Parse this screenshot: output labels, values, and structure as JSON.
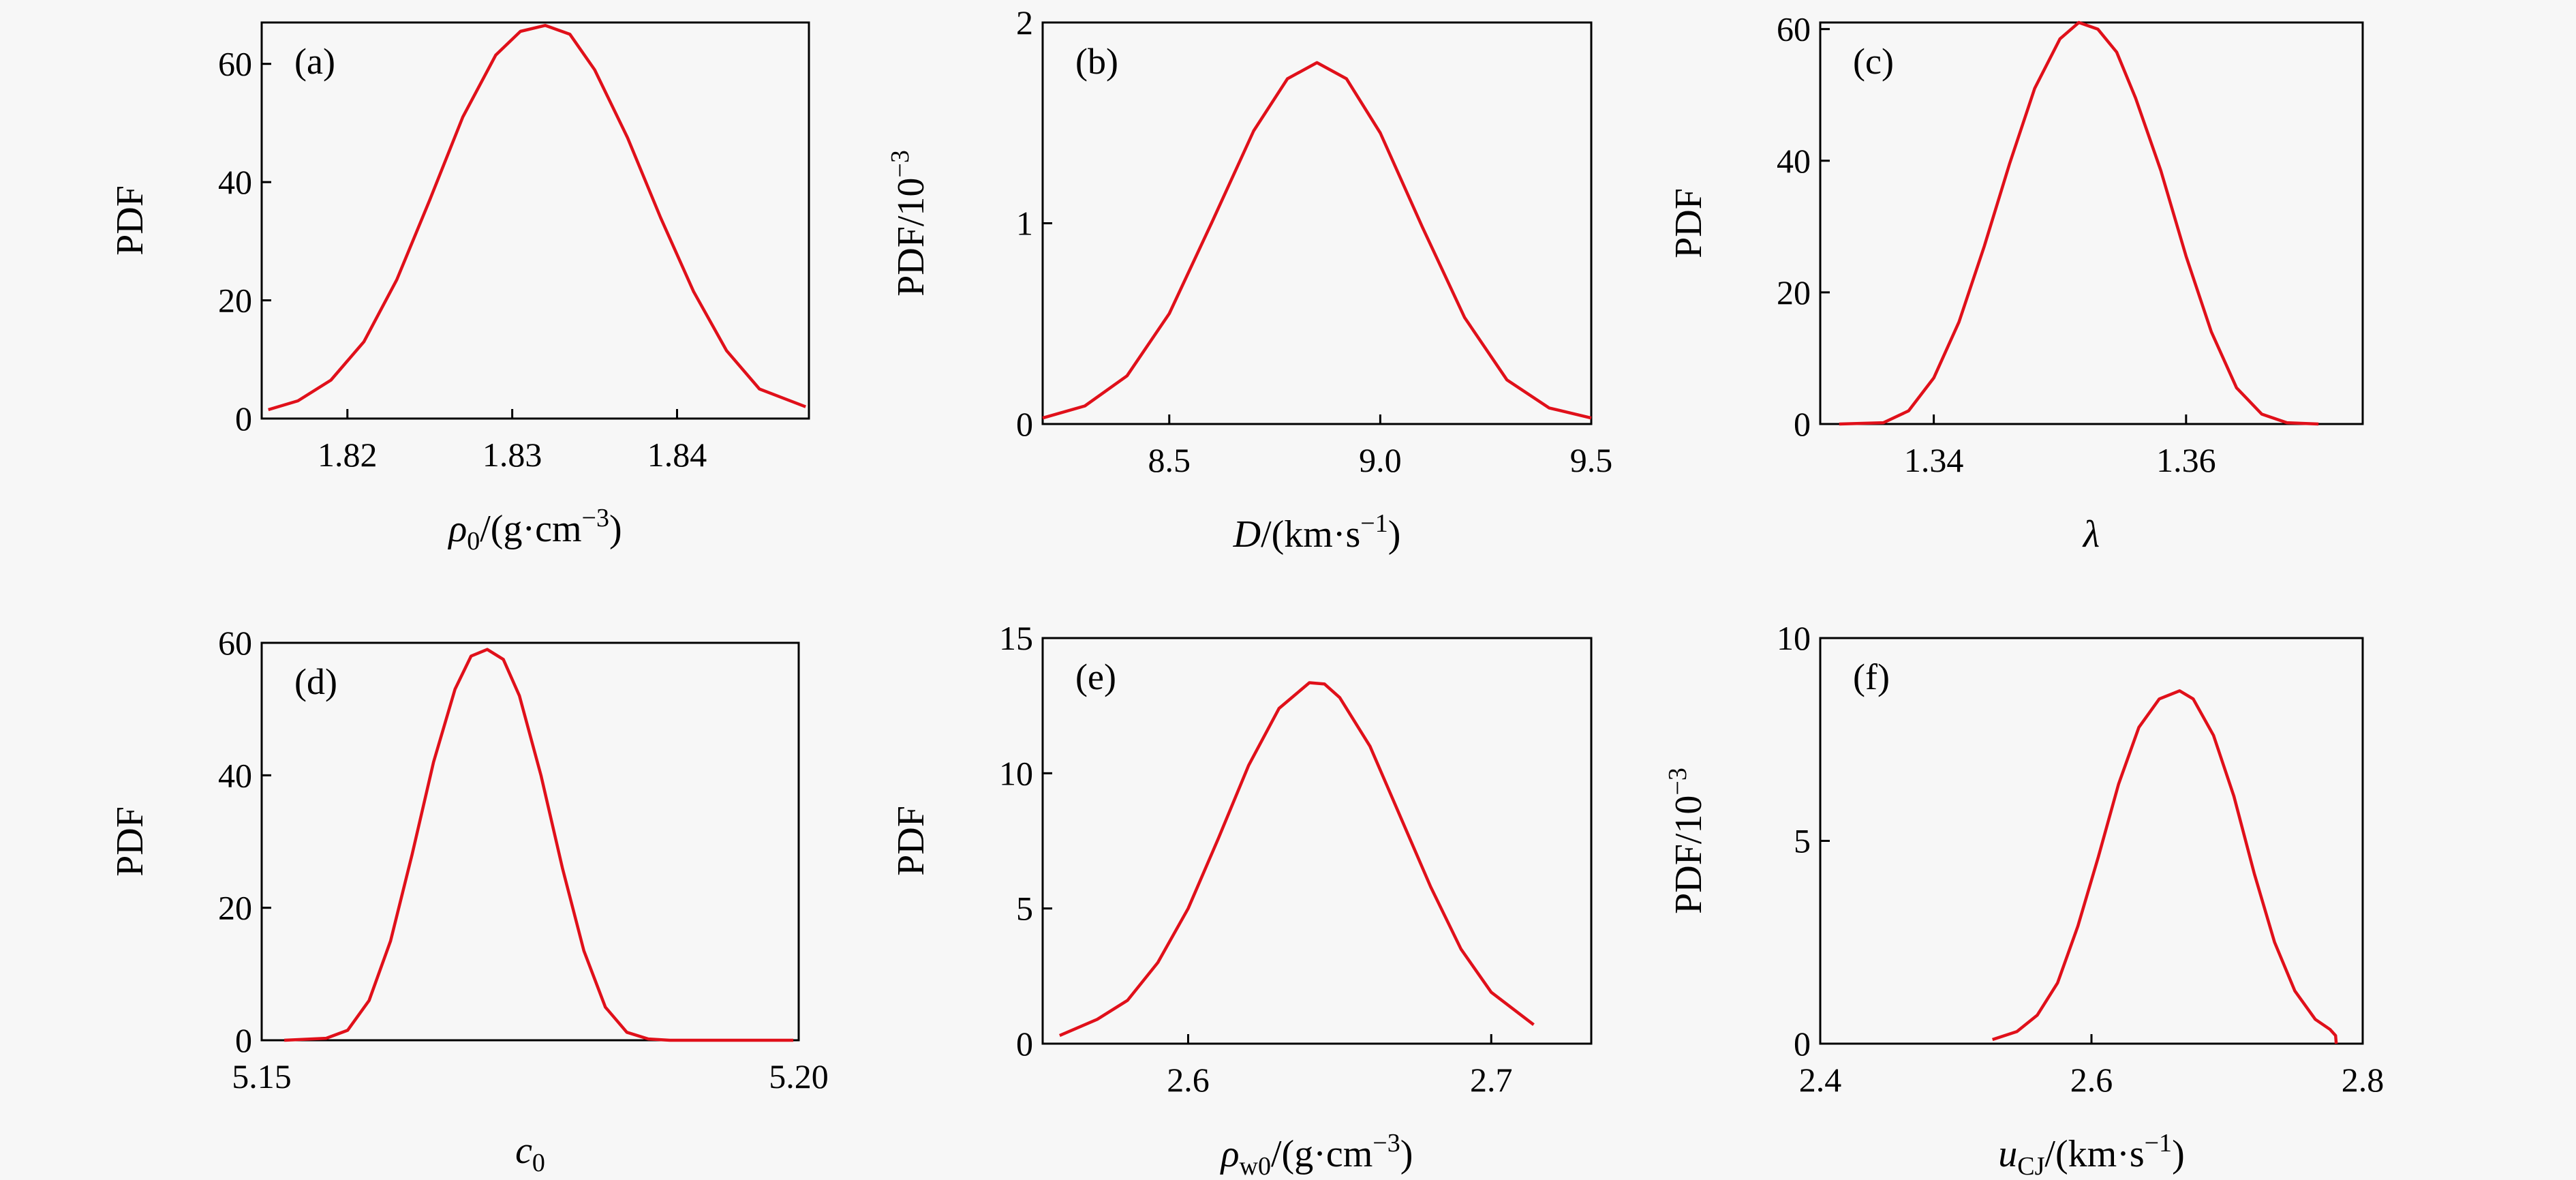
{
  "chart_data": [
    {
      "type": "line",
      "panel": "(a)",
      "ylabel": "PDF",
      "xlabel": {
        "sym": "ρ",
        "sub": "0",
        "rest": "/(g·cm",
        "sup": "−3",
        "end": ")"
      },
      "xlim": [
        1.8148,
        1.848
      ],
      "ylim": [
        0,
        67
      ],
      "xticks": [
        1.82,
        1.83,
        1.84
      ],
      "xtick_labels": [
        "1.82",
        "1.83",
        "1.84"
      ],
      "yticks": [
        0,
        20,
        40,
        60
      ],
      "ytick_labels": [
        "0",
        "20",
        "40",
        "60"
      ],
      "series": [
        {
          "x": [
            1.8152,
            1.817,
            1.819,
            1.821,
            1.823,
            1.825,
            1.827,
            1.829,
            1.8305,
            1.832,
            1.8335,
            1.835,
            1.837,
            1.839,
            1.841,
            1.843,
            1.845,
            1.8478
          ],
          "y": [
            1.5,
            3.0,
            6.5,
            13.0,
            23.5,
            37.0,
            51.0,
            61.5,
            65.5,
            66.5,
            65.0,
            59.0,
            47.5,
            34.0,
            21.5,
            11.5,
            5.0,
            2.0
          ]
        }
      ]
    },
    {
      "type": "line",
      "panel": "(b)",
      "ylabel": {
        "main": "PDF/10",
        "sup": "−3"
      },
      "xlabel": {
        "sym": "D",
        "sub": "",
        "rest": "/(km·s",
        "sup": "−1",
        "end": ")"
      },
      "xlim": [
        8.2,
        9.5
      ],
      "ylim": [
        0,
        2
      ],
      "xticks": [
        8.5,
        9.0,
        9.5
      ],
      "xtick_labels": [
        "8.5",
        "9.0",
        "9.5"
      ],
      "yticks": [
        0,
        1,
        2
      ],
      "ytick_labels": [
        "0",
        "1",
        "2"
      ],
      "series": [
        {
          "x": [
            8.2,
            8.3,
            8.4,
            8.5,
            8.6,
            8.7,
            8.78,
            8.85,
            8.92,
            9.0,
            9.1,
            9.2,
            9.3,
            9.4,
            9.5
          ],
          "y": [
            0.03,
            0.09,
            0.24,
            0.55,
            1.0,
            1.46,
            1.72,
            1.8,
            1.72,
            1.45,
            0.98,
            0.53,
            0.22,
            0.08,
            0.03
          ]
        }
      ]
    },
    {
      "type": "line",
      "panel": "(c)",
      "ylabel": "PDF",
      "xlabel": {
        "sym": "λ",
        "sub": "",
        "rest": "",
        "sup": "",
        "end": ""
      },
      "xlim": [
        1.331,
        1.374
      ],
      "ylim": [
        0,
        61
      ],
      "xticks": [
        1.34,
        1.36
      ],
      "xtick_labels": [
        "1.34",
        "1.36"
      ],
      "yticks": [
        0,
        20,
        40,
        60
      ],
      "ytick_labels": [
        "0",
        "20",
        "40",
        "60"
      ],
      "series": [
        {
          "x": [
            1.3325,
            1.336,
            1.338,
            1.34,
            1.342,
            1.344,
            1.346,
            1.348,
            1.35,
            1.3515,
            1.353,
            1.3545,
            1.356,
            1.358,
            1.36,
            1.362,
            1.364,
            1.366,
            1.368,
            1.3705
          ],
          "y": [
            0,
            0.2,
            2.0,
            7.0,
            15.5,
            27.0,
            39.5,
            51.0,
            58.5,
            61.0,
            60.0,
            56.5,
            49.5,
            38.5,
            25.5,
            14.0,
            5.5,
            1.5,
            0.2,
            0
          ]
        }
      ]
    },
    {
      "type": "line",
      "panel": "(d)",
      "ylabel": "PDF",
      "xlabel": {
        "sym": "c",
        "sub": "0",
        "rest": "",
        "sup": "",
        "end": ""
      },
      "xlim": [
        5.15,
        5.2
      ],
      "ylim": [
        0,
        60
      ],
      "xticks": [
        5.15,
        5.2
      ],
      "xtick_labels": [
        "5.15",
        "5.20"
      ],
      "yticks": [
        0,
        20,
        40,
        60
      ],
      "ytick_labels": [
        "0",
        "20",
        "40",
        "60"
      ],
      "series": [
        {
          "x": [
            5.1521,
            5.156,
            5.158,
            5.16,
            5.162,
            5.164,
            5.166,
            5.168,
            5.1695,
            5.171,
            5.1725,
            5.174,
            5.176,
            5.178,
            5.18,
            5.182,
            5.184,
            5.186,
            5.188,
            5.1995
          ],
          "y": [
            0,
            0.3,
            1.5,
            6.0,
            15.0,
            28.0,
            42.0,
            53.0,
            58.0,
            59.0,
            57.5,
            52.0,
            40.0,
            26.0,
            13.5,
            5.0,
            1.2,
            0.2,
            0,
            0
          ]
        }
      ]
    },
    {
      "type": "line",
      "panel": "(e)",
      "ylabel": "PDF",
      "xlabel": {
        "sym": "ρ",
        "sub": "w0",
        "rest": "/(g·cm",
        "sup": "−3",
        "end": ")"
      },
      "xlim": [
        2.552,
        2.733
      ],
      "ylim": [
        0,
        15
      ],
      "xticks": [
        2.6,
        2.7
      ],
      "xtick_labels": [
        "2.6",
        "2.7"
      ],
      "yticks": [
        0,
        5,
        10,
        15
      ],
      "ytick_labels": [
        "0",
        "5",
        "10",
        "15"
      ],
      "series": [
        {
          "x": [
            2.5576,
            2.57,
            2.58,
            2.59,
            2.6,
            2.61,
            2.62,
            2.63,
            2.64,
            2.645,
            2.65,
            2.66,
            2.67,
            2.68,
            2.69,
            2.7,
            2.714
          ],
          "y": [
            0.3,
            0.9,
            1.6,
            3.0,
            5.0,
            7.6,
            10.3,
            12.4,
            13.35,
            13.3,
            12.8,
            11.0,
            8.4,
            5.8,
            3.5,
            1.9,
            0.7
          ]
        }
      ]
    },
    {
      "type": "line",
      "panel": "(f)",
      "ylabel": {
        "main": "PDF/10",
        "sup": "−3"
      },
      "xlabel": {
        "sym": "u",
        "sub": "CJ",
        "rest": "/(km·s",
        "sup": "−1",
        "end": ")"
      },
      "xlim": [
        2.4,
        2.8
      ],
      "ylim": [
        0,
        10
      ],
      "xticks": [
        2.4,
        2.6,
        2.8
      ],
      "xtick_labels": [
        "2.4",
        "2.6",
        "2.8"
      ],
      "yticks": [
        0,
        5,
        10
      ],
      "ytick_labels": [
        "0",
        "5",
        "10"
      ],
      "series": [
        {
          "x": [
            2.527,
            2.545,
            2.56,
            2.575,
            2.59,
            2.605,
            2.62,
            2.635,
            2.65,
            2.665,
            2.675,
            2.69,
            2.705,
            2.72,
            2.735,
            2.75,
            2.765,
            2.776,
            2.78,
            2.7805
          ],
          "y": [
            0.1,
            0.3,
            0.7,
            1.5,
            2.9,
            4.6,
            6.4,
            7.8,
            8.5,
            8.7,
            8.5,
            7.6,
            6.1,
            4.2,
            2.5,
            1.3,
            0.6,
            0.35,
            0.2,
            0
          ]
        }
      ]
    }
  ],
  "colors": {
    "curve": "#e0101a",
    "axes": "#000000",
    "background": "#f7f7f7"
  }
}
